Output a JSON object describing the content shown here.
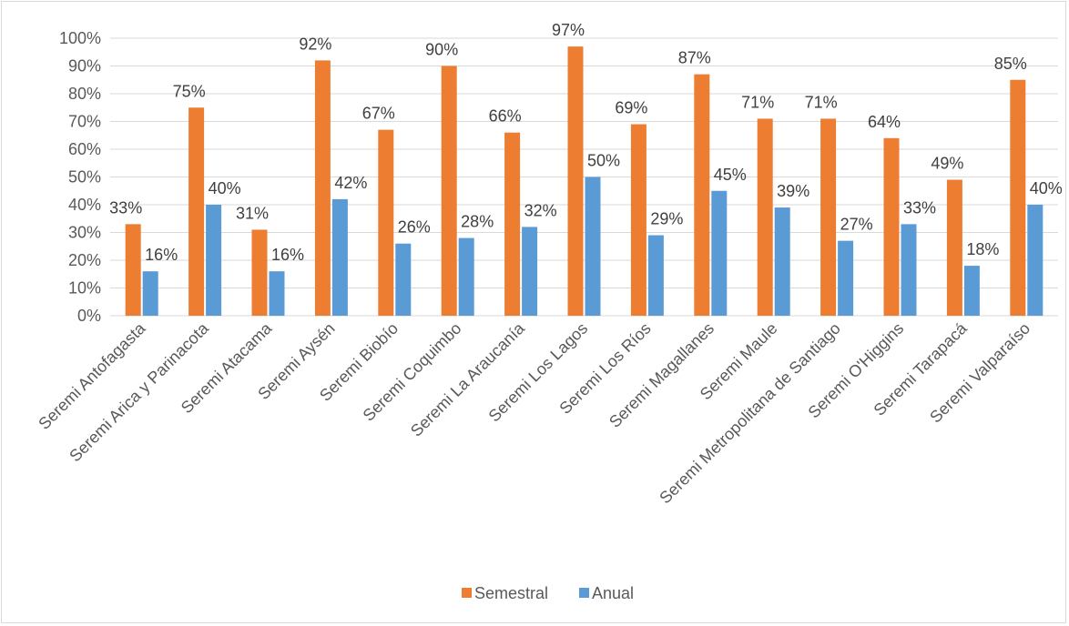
{
  "chart_data": {
    "type": "bar",
    "categories": [
      "Seremi Antofagasta",
      "Seremi Arica y Parinacota",
      "Seremi Atacama",
      "Seremi Aysén",
      "Seremi Biobío",
      "Seremi Coquimbo",
      "Seremi La Araucanía",
      "Seremi Los Lagos",
      "Seremi Los Ríos",
      "Seremi Magallanes",
      "Seremi Maule",
      "Seremi Metropolitana de Santiago",
      "Seremi O'Higgins",
      "Seremi Tarapacá",
      "Seremi Valparaíso"
    ],
    "series": [
      {
        "name": "Semestral",
        "color": "#ed7d31",
        "values": [
          33,
          75,
          31,
          92,
          67,
          90,
          66,
          97,
          69,
          87,
          71,
          71,
          64,
          49,
          85
        ],
        "labels": [
          "33%",
          "75%",
          "31%",
          "92%",
          "67%",
          "90%",
          "66%",
          "97%",
          "69%",
          "87%",
          "71%",
          "71%",
          "64%",
          "49%",
          "85%"
        ]
      },
      {
        "name": "Anual",
        "color": "#5b9bd5",
        "values": [
          16,
          40,
          16,
          42,
          26,
          28,
          32,
          50,
          29,
          45,
          39,
          27,
          33,
          18,
          40
        ],
        "labels": [
          "16%",
          "40%",
          "16%",
          "42%",
          "26%",
          "28%",
          "32%",
          "50%",
          "29%",
          "45%",
          "39%",
          "27%",
          "33%",
          "18%",
          "40%"
        ]
      }
    ],
    "y_ticks": [
      "0%",
      "10%",
      "20%",
      "30%",
      "40%",
      "50%",
      "60%",
      "70%",
      "80%",
      "90%",
      "100%"
    ],
    "ylim": [
      0,
      100
    ],
    "grid": true,
    "legend_position": "bottom",
    "title": "",
    "xlabel": "",
    "ylabel": ""
  }
}
